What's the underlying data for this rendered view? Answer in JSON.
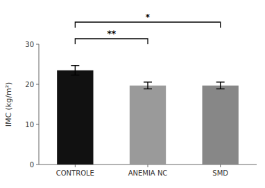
{
  "chart_data": {
    "type": "bar",
    "categories": [
      "CONTROLE",
      "ANEMIA NC",
      "SMD"
    ],
    "values": [
      23.5,
      19.7,
      19.7
    ],
    "errors": [
      1.2,
      0.85,
      0.85
    ],
    "colors": [
      "#111111",
      "#9a9a9a",
      "#878787"
    ],
    "ylabel": "IMC (kg/m²)",
    "ylim": [
      0,
      30
    ],
    "yticks": [
      0,
      10,
      20,
      30
    ],
    "grid": false,
    "annotations": [
      {
        "text": "**",
        "from": "CONTROLE",
        "to": "ANEMIA NC"
      },
      {
        "text": "*",
        "from": "CONTROLE",
        "to": "SMD"
      }
    ]
  }
}
